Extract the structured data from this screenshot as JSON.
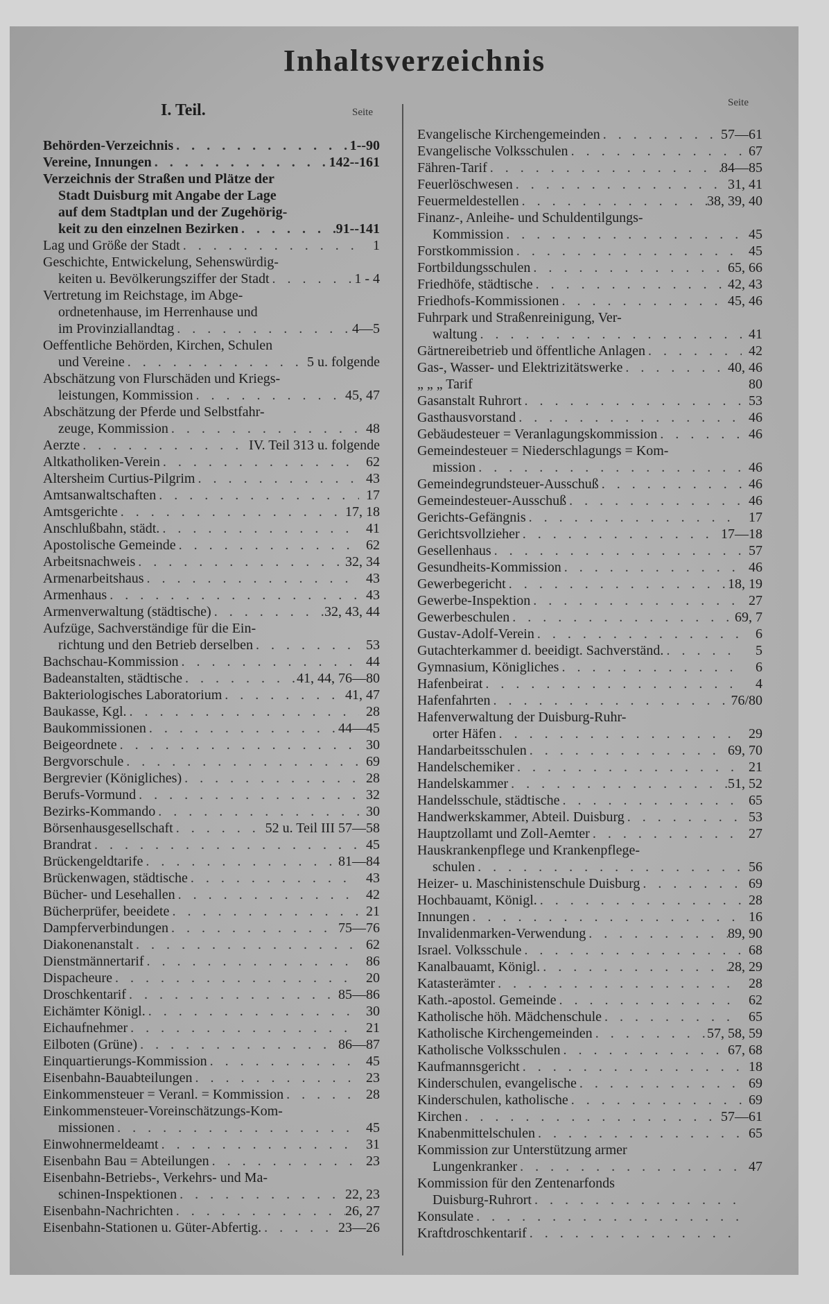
{
  "title": "Inhaltsverzeichnis",
  "part_heading": "I. Teil.",
  "seite_label": "Seite",
  "left_column": [
    {
      "lines": [
        "Behörden-Verzeichnis"
      ],
      "page": "1--90",
      "bold": true
    },
    {
      "lines": [
        "Vereine, Innungen"
      ],
      "page": "142--161",
      "bold": true
    },
    {
      "lines": [
        "Verzeichnis der Straßen und Plätze der",
        "Stadt Duisburg mit Angabe der Lage",
        "auf dem Stadtplan und der Zugehörig-",
        "keit zu den einzelnen Bezirken"
      ],
      "page": "91--141",
      "bold": true
    },
    {
      "lines": [
        "Lag und Größe der Stadt"
      ],
      "page": "1"
    },
    {
      "lines": [
        "Geschichte, Entwickelung, Sehenswürdig-",
        "keiten u. Bevölkerungsziffer der Stadt"
      ],
      "page": "1 - 4"
    },
    {
      "lines": [
        "Vertretung im Reichstage, im Abge-",
        "ordnetenhause, im Herrenhause und",
        "im Provinziallandtag"
      ],
      "page": "4—5"
    },
    {
      "lines": [
        "Oeffentliche Behörden, Kirchen, Schulen",
        "und Vereine"
      ],
      "page": "5 u. folgende"
    },
    {
      "lines": [
        "Abschätzung von Flurschäden und Kriegs-",
        "leistungen, Kommission"
      ],
      "page": "45, 47"
    },
    {
      "lines": [
        "Abschätzung der Pferde und Selbstfahr-",
        "zeuge, Kommission"
      ],
      "page": "48"
    },
    {
      "lines": [
        "Aerzte"
      ],
      "page": "IV. Teil 313 u. folgende"
    },
    {
      "lines": [
        "Altkatholiken-Verein"
      ],
      "page": "62"
    },
    {
      "lines": [
        "Altersheim Curtius-Pilgrim"
      ],
      "page": "43"
    },
    {
      "lines": [
        "Amtsanwaltschaften"
      ],
      "page": "17"
    },
    {
      "lines": [
        "Amtsgerichte"
      ],
      "page": "17, 18"
    },
    {
      "lines": [
        "Anschlußbahn, städt."
      ],
      "page": "41"
    },
    {
      "lines": [
        "Apostolische Gemeinde"
      ],
      "page": "62"
    },
    {
      "lines": [
        "Arbeitsnachweis"
      ],
      "page": "32, 34"
    },
    {
      "lines": [
        "Armenarbeitshaus"
      ],
      "page": "43"
    },
    {
      "lines": [
        "Armenhaus"
      ],
      "page": "43"
    },
    {
      "lines": [
        "Armenverwaltung (städtische)"
      ],
      "page": "32, 43, 44"
    },
    {
      "lines": [
        "Aufzüge, Sachverständige für die Ein-",
        "richtung und den Betrieb derselben"
      ],
      "page": "53"
    },
    {
      "lines": [
        "Bachschau-Kommission"
      ],
      "page": "44"
    },
    {
      "lines": [
        "Badeanstalten, städtische"
      ],
      "page": "41, 44, 76—80"
    },
    {
      "lines": [
        "Bakteriologisches Laboratorium"
      ],
      "page": "41, 47"
    },
    {
      "lines": [
        "Baukasse, Kgl."
      ],
      "page": "28"
    },
    {
      "lines": [
        "Baukommissionen"
      ],
      "page": "44—45"
    },
    {
      "lines": [
        "Beigeordnete"
      ],
      "page": "30"
    },
    {
      "lines": [
        "Bergvorschule"
      ],
      "page": "69"
    },
    {
      "lines": [
        "Bergrevier (Königliches)"
      ],
      "page": "28"
    },
    {
      "lines": [
        "Berufs-Vormund"
      ],
      "page": "32"
    },
    {
      "lines": [
        "Bezirks-Kommando"
      ],
      "page": "30"
    },
    {
      "lines": [
        "Börsenhausgesellschaft"
      ],
      "page": "52 u. Teil III 57—58"
    },
    {
      "lines": [
        "Brandrat"
      ],
      "page": "45"
    },
    {
      "lines": [
        "Brückengeldtarife"
      ],
      "page": "81—84"
    },
    {
      "lines": [
        "Brückenwagen, städtische"
      ],
      "page": "43"
    },
    {
      "lines": [
        "Bücher- und Lesehallen"
      ],
      "page": "42"
    },
    {
      "lines": [
        "Bücherprüfer, beeidete"
      ],
      "page": "21"
    },
    {
      "lines": [
        "Dampferverbindungen"
      ],
      "page": "75—76"
    },
    {
      "lines": [
        "Diakonenanstalt"
      ],
      "page": "62"
    },
    {
      "lines": [
        "Dienstmännertarif"
      ],
      "page": "86"
    },
    {
      "lines": [
        "Dispacheure"
      ],
      "page": "20"
    },
    {
      "lines": [
        "Droschkentarif"
      ],
      "page": "85—86"
    },
    {
      "lines": [
        "Eichämter Königl."
      ],
      "page": "30"
    },
    {
      "lines": [
        "Eichaufnehmer"
      ],
      "page": "21"
    },
    {
      "lines": [
        "Eilboten (Grüne)"
      ],
      "page": "86—87"
    },
    {
      "lines": [
        "Einquartierungs-Kommission"
      ],
      "page": "45"
    },
    {
      "lines": [
        "Eisenbahn-Bauabteilungen"
      ],
      "page": "23"
    },
    {
      "lines": [
        "Einkommensteuer = Veranl. = Kommission"
      ],
      "page": "28"
    },
    {
      "lines": [
        "Einkommensteuer-Voreinschätzungs-Kom-",
        "missionen"
      ],
      "page": "45"
    },
    {
      "lines": [
        "Einwohnermeldeamt"
      ],
      "page": "31"
    },
    {
      "lines": [
        "Eisenbahn Bau = Abteilungen"
      ],
      "page": "23"
    },
    {
      "lines": [
        "Eisenbahn-Betriebs-, Verkehrs- und Ma-",
        "schinen-Inspektionen"
      ],
      "page": "22, 23"
    },
    {
      "lines": [
        "Eisenbahn-Nachrichten"
      ],
      "page": "26, 27"
    },
    {
      "lines": [
        "Eisenbahn-Stationen u. Güter-Abfertig."
      ],
      "page": "23—26"
    }
  ],
  "right_column": [
    {
      "lines": [
        "Evangelische Kirchengemeinden"
      ],
      "page": "57—61"
    },
    {
      "lines": [
        "Evangelische Volksschulen"
      ],
      "page": "67"
    },
    {
      "lines": [
        "Fähren-Tarif"
      ],
      "page": "84—85"
    },
    {
      "lines": [
        "Feuerlöschwesen"
      ],
      "page": "31, 41"
    },
    {
      "lines": [
        "Feuermeldestellen"
      ],
      "page": "38, 39, 40"
    },
    {
      "lines": [
        "Finanz-, Anleihe- und Schuldentilgungs-",
        "Kommission"
      ],
      "page": "45"
    },
    {
      "lines": [
        "Forstkommission"
      ],
      "page": "45"
    },
    {
      "lines": [
        "Fortbildungsschulen"
      ],
      "page": "65, 66"
    },
    {
      "lines": [
        "Friedhöfe, städtische"
      ],
      "page": "42, 43"
    },
    {
      "lines": [
        "Friedhofs-Kommissionen"
      ],
      "page": "45, 46"
    },
    {
      "lines": [
        "Fuhrpark und Straßenreinigung, Ver-",
        "waltung"
      ],
      "page": "41"
    },
    {
      "lines": [
        "Gärtnereibetrieb und öffentliche Anlagen"
      ],
      "page": "42"
    },
    {
      "lines": [
        "Gas-, Wasser- und Elektrizitätswerke"
      ],
      "page": "40, 46"
    },
    {
      "lines": [
        "„          „          „          Tarif"
      ],
      "page": "80",
      "nodots": true
    },
    {
      "lines": [
        "Gasanstalt Ruhrort"
      ],
      "page": "53"
    },
    {
      "lines": [
        "Gasthausvorstand"
      ],
      "page": "46"
    },
    {
      "lines": [
        "Gebäudesteuer = Veranlagungskommission"
      ],
      "page": "46"
    },
    {
      "lines": [
        "Gemeindesteuer = Niederschlagungs = Kom-",
        "mission"
      ],
      "page": "46"
    },
    {
      "lines": [
        "Gemeindegrundsteuer-Ausschuß"
      ],
      "page": "46"
    },
    {
      "lines": [
        "Gemeindesteuer-Ausschuß"
      ],
      "page": "46"
    },
    {
      "lines": [
        "Gerichts-Gefängnis"
      ],
      "page": "17"
    },
    {
      "lines": [
        "Gerichtsvollzieher"
      ],
      "page": "17—18"
    },
    {
      "lines": [
        "Gesellenhaus"
      ],
      "page": "57"
    },
    {
      "lines": [
        "Gesundheits-Kommission"
      ],
      "page": "46"
    },
    {
      "lines": [
        "Gewerbegericht"
      ],
      "page": "18, 19"
    },
    {
      "lines": [
        "Gewerbe-Inspektion"
      ],
      "page": "27"
    },
    {
      "lines": [
        "Gewerbeschulen"
      ],
      "page": "69, 7"
    },
    {
      "lines": [
        "Gustav-Adolf-Verein"
      ],
      "page": "6"
    },
    {
      "lines": [
        "Gutachterkammer d. beeidigt. Sachverständ."
      ],
      "page": "5"
    },
    {
      "lines": [
        "Gymnasium, Königliches"
      ],
      "page": "6"
    },
    {
      "lines": [
        "Hafenbeirat"
      ],
      "page": "4"
    },
    {
      "lines": [
        "Hafenfahrten"
      ],
      "page": "76/80"
    },
    {
      "lines": [
        "Hafenverwaltung der Duisburg-Ruhr-",
        "orter Häfen"
      ],
      "page": "29"
    },
    {
      "lines": [
        "Handarbeitsschulen"
      ],
      "page": "69, 70"
    },
    {
      "lines": [
        "Handelschemiker"
      ],
      "page": "21"
    },
    {
      "lines": [
        "Handelskammer"
      ],
      "page": "51, 52"
    },
    {
      "lines": [
        "Handelsschule, städtische"
      ],
      "page": "65"
    },
    {
      "lines": [
        "Handwerkskammer, Abteil. Duisburg"
      ],
      "page": "53"
    },
    {
      "lines": [
        "Hauptzollamt und Zoll-Aemter"
      ],
      "page": "27"
    },
    {
      "lines": [
        "Hauskrankenpflege und Krankenpflege-",
        "schulen"
      ],
      "page": "56"
    },
    {
      "lines": [
        "Heizer- u. Maschinistenschule Duisburg"
      ],
      "page": "69"
    },
    {
      "lines": [
        "Hochbauamt, Königl."
      ],
      "page": "28"
    },
    {
      "lines": [
        "Innungen"
      ],
      "page": "16"
    },
    {
      "lines": [
        "Invalidenmarken-Verwendung"
      ],
      "page": "89, 90"
    },
    {
      "lines": [
        "Israel. Volksschule"
      ],
      "page": "68"
    },
    {
      "lines": [
        "Kanalbauamt, Königl."
      ],
      "page": "28, 29"
    },
    {
      "lines": [
        "Katasterämter"
      ],
      "page": "28"
    },
    {
      "lines": [
        "Kath.-apostol. Gemeinde"
      ],
      "page": "62"
    },
    {
      "lines": [
        "Katholische höh. Mädchenschule"
      ],
      "page": "65"
    },
    {
      "lines": [
        "Katholische Kirchengemeinden"
      ],
      "page": "57, 58, 59"
    },
    {
      "lines": [
        "Katholische Volksschulen"
      ],
      "page": "67, 68"
    },
    {
      "lines": [
        "Kaufmannsgericht"
      ],
      "page": "18"
    },
    {
      "lines": [
        "Kinderschulen, evangelische"
      ],
      "page": "69"
    },
    {
      "lines": [
        "Kinderschulen, katholische"
      ],
      "page": "69"
    },
    {
      "lines": [
        "Kirchen"
      ],
      "page": "57—61"
    },
    {
      "lines": [
        "Knabenmittelschulen"
      ],
      "page": "65"
    },
    {
      "lines": [
        "Kommission zur Unterstützung armer",
        "Lungenkranker"
      ],
      "page": "47"
    },
    {
      "lines": [
        "Kommission für den Zentenarfonds",
        "Duisburg-Ruhrort"
      ],
      "page": ""
    },
    {
      "lines": [
        "Konsulate"
      ],
      "page": ""
    },
    {
      "lines": [
        "Kraftdroschkentarif"
      ],
      "page": ""
    }
  ]
}
